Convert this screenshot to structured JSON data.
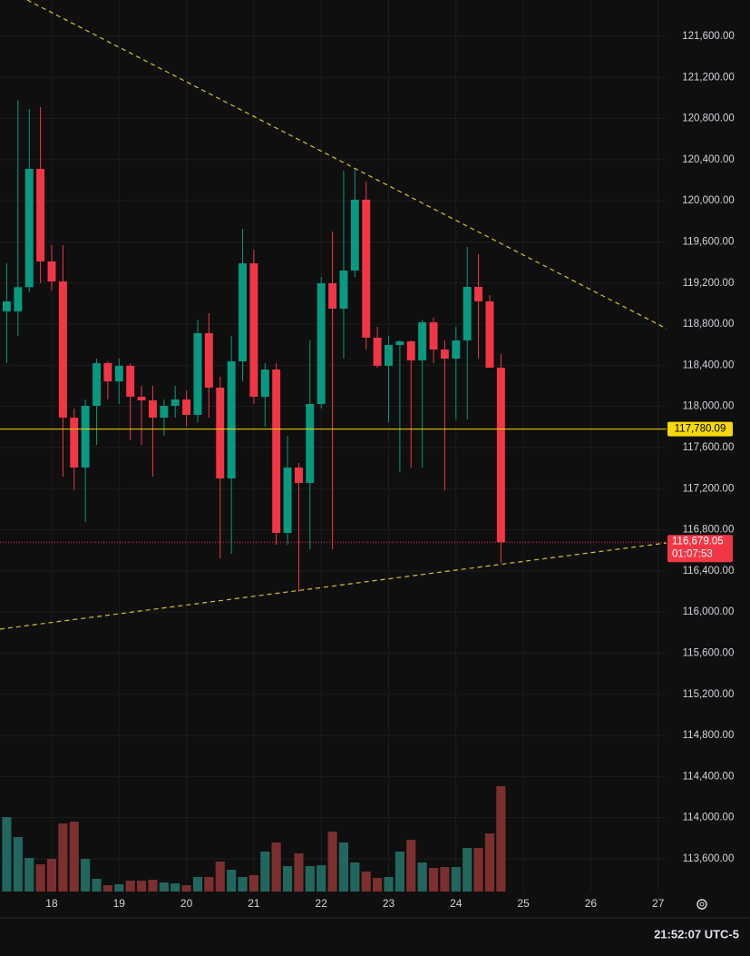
{
  "chart_data": {
    "type": "candlestick",
    "x": [
      17.333,
      17.5,
      17.667,
      17.833,
      18,
      18.167,
      18.333,
      18.5,
      18.667,
      18.833,
      19,
      19.167,
      19.333,
      19.5,
      19.667,
      19.833,
      20,
      20.167,
      20.333,
      20.5,
      20.667,
      20.833,
      21,
      21.167,
      21.333,
      21.5,
      21.667,
      21.833,
      22,
      22.167,
      22.333,
      22.5,
      22.667,
      22.833,
      23,
      23.167,
      23.333,
      23.5,
      23.667,
      23.833,
      24,
      24.167,
      24.333,
      24.5,
      24.667
    ],
    "open": [
      118925,
      118925,
      119160,
      120311,
      119410,
      119216,
      117891,
      117406,
      118006,
      118421,
      118244,
      118395,
      118094,
      118059,
      117891,
      118006,
      118068,
      117918,
      118713,
      118183,
      117300,
      118439,
      119392,
      118094,
      118359,
      116770,
      117406,
      117256,
      118024,
      119198,
      118951,
      119322,
      120011,
      118669,
      118395,
      118598,
      118633,
      118448,
      118818,
      118554,
      118465,
      118642,
      119163,
      119022,
      118377
    ],
    "high": [
      119392,
      120982,
      120894,
      120911,
      119569,
      119569,
      117980,
      118068,
      118465,
      118439,
      118465,
      118421,
      118200,
      118200,
      118068,
      118200,
      118156,
      118845,
      118907,
      118289,
      118686,
      119728,
      119525,
      118421,
      118421,
      117715,
      117450,
      118642,
      119260,
      119701,
      120293,
      120320,
      120187,
      118774,
      118686,
      118642,
      118642,
      118845,
      118863,
      118642,
      118774,
      119551,
      119481,
      119084,
      118510
    ],
    "low": [
      118421,
      118686,
      119110,
      119198,
      119128,
      117317,
      117185,
      116876,
      117627,
      118068,
      118024,
      117671,
      117627,
      117317,
      117715,
      117891,
      117803,
      117847,
      117891,
      116523,
      116567,
      118244,
      118024,
      117803,
      116655,
      116655,
      116196,
      116611,
      117980,
      116611,
      118465,
      119260,
      118554,
      118377,
      117847,
      117362,
      117406,
      117406,
      118421,
      117185,
      117874,
      117874,
      118465,
      118377,
      116479
    ],
    "close": [
      119022,
      119160,
      120311,
      119410,
      119216,
      117891,
      117406,
      118006,
      118421,
      118244,
      118395,
      118094,
      118059,
      117891,
      118006,
      118068,
      117918,
      118713,
      118183,
      117300,
      118439,
      119392,
      118094,
      118359,
      116770,
      117406,
      117256,
      118024,
      119198,
      118951,
      119322,
      120011,
      118669,
      118395,
      118598,
      118633,
      118448,
      118818,
      118554,
      118465,
      118642,
      119163,
      119022,
      118377,
      116679.05
    ],
    "volume": [
      82,
      60,
      37,
      30,
      36,
      75,
      77,
      36,
      14,
      7,
      8,
      12,
      12,
      13,
      10,
      9,
      7,
      16,
      16,
      33,
      24,
      16,
      18,
      44,
      54,
      28,
      42,
      28,
      29,
      66,
      54,
      32,
      22,
      15,
      16,
      44,
      57,
      32,
      26,
      27,
      27,
      48,
      48,
      64,
      116
    ],
    "up_color": "#089981",
    "down_color": "#f23645",
    "up_volume_color": "#22675f",
    "down_volume_color": "#7c2f2f",
    "xlim": [
      17.233,
      27.125
    ],
    "xticks": [
      18,
      19,
      20,
      21,
      22,
      23,
      24,
      25,
      26,
      27
    ],
    "ylim": [
      113282,
      121953
    ],
    "yticks": [
      {
        "value": 113600,
        "label": "113,600.00"
      },
      {
        "value": 114000,
        "label": "114,000.00"
      },
      {
        "value": 114400,
        "label": "114,400.00"
      },
      {
        "value": 114800,
        "label": "114,800.00"
      },
      {
        "value": 115200,
        "label": "115,200.00"
      },
      {
        "value": 115600,
        "label": "115,600.00"
      },
      {
        "value": 116000,
        "label": "116,000.00"
      },
      {
        "value": 116400,
        "label": "116,400.00"
      },
      {
        "value": 116800,
        "label": "116,800.00"
      },
      {
        "value": 117200,
        "label": "117,200.00"
      },
      {
        "value": 117600,
        "label": "117,600.00"
      },
      {
        "value": 118000,
        "label": "118,000.00"
      },
      {
        "value": 118400,
        "label": "118,400.00"
      },
      {
        "value": 118800,
        "label": "118,800.00"
      },
      {
        "value": 119200,
        "label": "119,200.00"
      },
      {
        "value": 119600,
        "label": "119,600.00"
      },
      {
        "value": 120000,
        "label": "120,000.00"
      },
      {
        "value": 120400,
        "label": "120,400.00"
      },
      {
        "value": 120800,
        "label": "120,800.00"
      },
      {
        "value": 121200,
        "label": "121,200.00"
      },
      {
        "value": 121600,
        "label": "121,600.00"
      }
    ],
    "grid": true,
    "hline": {
      "value": 117780.09,
      "label": "117,780.09",
      "color": "#f5d90a"
    },
    "last_price": {
      "value": 116679.05,
      "label": "116,679.05",
      "countdown": "01:07:53",
      "color": "#f23645"
    },
    "trendlines": [
      {
        "x": [
          17.637,
          27.125
        ],
        "y": [
          121953,
          118757
        ],
        "color": "#d9c32a"
      },
      {
        "x": [
          17.233,
          27.125
        ],
        "y": [
          115834,
          116673
        ],
        "color": "#d9c32a"
      }
    ],
    "clock": "21:52:07 UTC-5"
  }
}
